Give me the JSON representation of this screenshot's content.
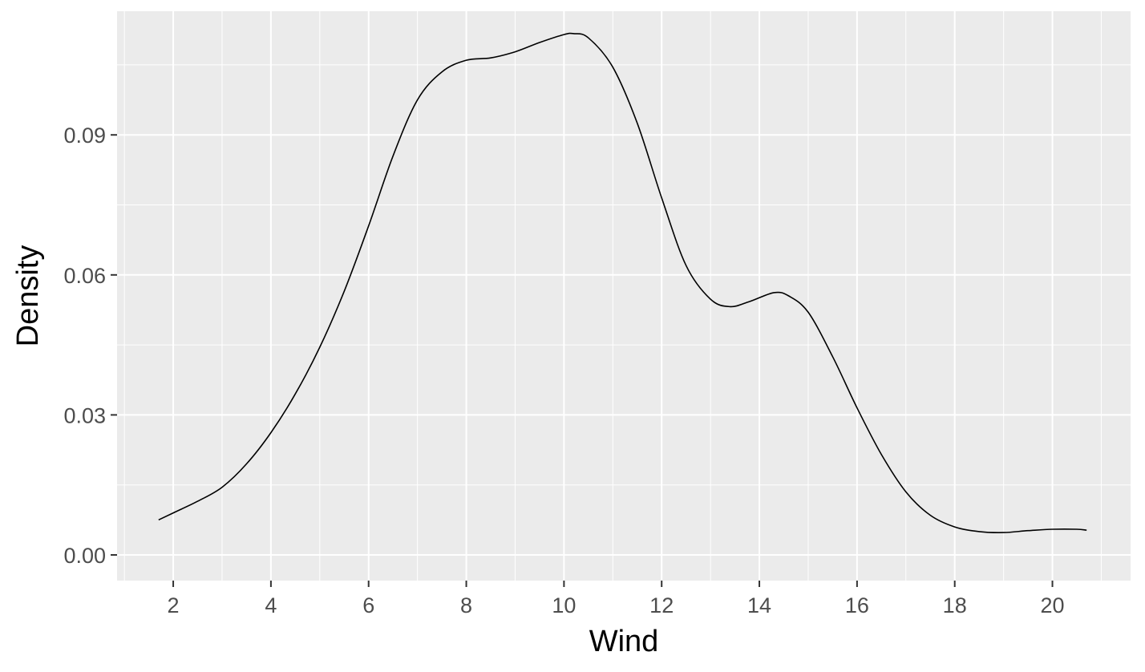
{
  "chart_data": {
    "type": "line",
    "geom": "density",
    "xlabel": "Wind",
    "ylabel": "Density",
    "xlim": [
      0.85,
      21.6
    ],
    "ylim": [
      -0.0055,
      0.1165
    ],
    "x_ticks": [
      2,
      4,
      6,
      8,
      10,
      12,
      14,
      16,
      18,
      20
    ],
    "x_tick_labels": [
      "2",
      "4",
      "6",
      "8",
      "10",
      "12",
      "14",
      "16",
      "18",
      "20"
    ],
    "y_ticks": [
      0.0,
      0.03,
      0.06,
      0.09
    ],
    "y_tick_labels": [
      "0.00",
      "0.03",
      "0.06",
      "0.09"
    ],
    "grid": true,
    "colors": {
      "panel": "#ebebeb",
      "grid": "#ffffff",
      "line": "#000000",
      "tick_text": "#4d4d4d"
    },
    "series": [
      {
        "x": [
          1.7,
          2.0,
          2.5,
          3.0,
          3.5,
          4.0,
          4.5,
          5.0,
          5.5,
          6.0,
          6.5,
          7.0,
          7.5,
          8.0,
          8.5,
          9.0,
          9.5,
          10.0,
          10.2,
          10.5,
          11.0,
          11.5,
          12.0,
          12.5,
          13.0,
          13.4,
          13.8,
          14.3,
          14.6,
          15.0,
          15.5,
          16.0,
          16.5,
          17.0,
          17.5,
          18.0,
          18.5,
          19.0,
          19.5,
          20.0,
          20.5,
          20.7
        ],
        "values": [
          0.0075,
          0.009,
          0.0115,
          0.0145,
          0.0195,
          0.0262,
          0.0345,
          0.0445,
          0.0565,
          0.0705,
          0.0855,
          0.0975,
          0.1035,
          0.106,
          0.1065,
          0.1078,
          0.1098,
          0.1115,
          0.1117,
          0.1108,
          0.1045,
          0.0925,
          0.0765,
          0.062,
          0.0548,
          0.0532,
          0.0543,
          0.0562,
          0.0555,
          0.052,
          0.0425,
          0.0315,
          0.0215,
          0.0135,
          0.0085,
          0.006,
          0.005,
          0.0048,
          0.0052,
          0.0055,
          0.0055,
          0.0053
        ]
      }
    ]
  }
}
